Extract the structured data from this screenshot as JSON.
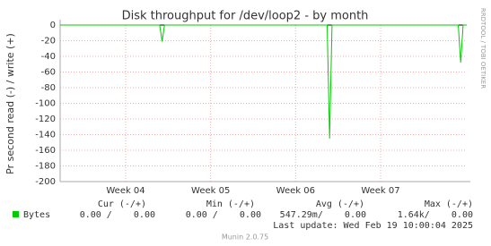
{
  "chart_data": {
    "type": "line",
    "title": "Disk throughput for /dev/loop2 - by month",
    "y_label": "Pr second read (-) / write (+)",
    "x": [
      -5.4,
      2.8,
      3.0,
      3.2,
      16.6,
      16.8,
      17.0,
      27.4,
      27.6,
      27.8,
      28.1
    ],
    "series": [
      {
        "name": "Bytes",
        "color": "#00cc00",
        "values": [
          0,
          0,
          -21,
          0,
          0,
          -145,
          0,
          0,
          -48,
          0,
          0
        ]
      }
    ],
    "xlim": [
      -5.4,
      28.1
    ],
    "xticks": [
      {
        "value": 0,
        "label": "Week 04"
      },
      {
        "value": 7,
        "label": "Week 05"
      },
      {
        "value": 14,
        "label": "Week 06"
      },
      {
        "value": 21,
        "label": "Week 07"
      }
    ],
    "ylim": [
      -200,
      0
    ],
    "yticks": [
      0,
      -20,
      -40,
      -60,
      -80,
      -100,
      -120,
      -140,
      -160,
      -180,
      -200
    ],
    "grid": true
  },
  "summary": {
    "headers": [
      "Cur (-/+)",
      "Min (-/+)",
      "Avg (-/+)",
      "Max (-/+)"
    ],
    "cells": [
      "0.00 /    0.00",
      "0.00 /    0.00",
      "547.29m/    0.00",
      "1.64k/    0.00"
    ]
  },
  "last_update": "Last update: Wed Feb 19 10:00:04 2025",
  "side_text": "RRDTOOL / TOBI OETIKER",
  "footer": "Munin 2.0.75"
}
